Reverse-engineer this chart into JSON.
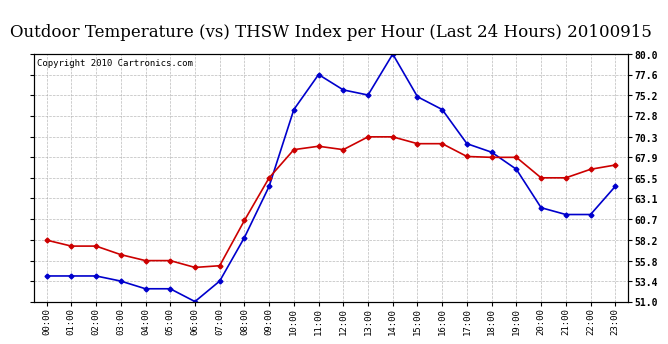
{
  "title": "Outdoor Temperature (vs) THSW Index per Hour (Last 24 Hours) 20100915",
  "copyright": "Copyright 2010 Cartronics.com",
  "hours": [
    "00:00",
    "01:00",
    "02:00",
    "03:00",
    "04:00",
    "05:00",
    "06:00",
    "07:00",
    "08:00",
    "09:00",
    "10:00",
    "11:00",
    "12:00",
    "13:00",
    "14:00",
    "15:00",
    "16:00",
    "17:00",
    "18:00",
    "19:00",
    "20:00",
    "21:00",
    "22:00",
    "23:00"
  ],
  "temp": [
    58.2,
    57.5,
    57.5,
    56.5,
    55.8,
    55.8,
    55.0,
    55.2,
    60.5,
    65.5,
    68.8,
    69.2,
    68.8,
    70.3,
    70.3,
    69.5,
    69.5,
    68.0,
    67.9,
    67.9,
    65.5,
    65.5,
    66.5,
    67.0
  ],
  "thsw": [
    54.0,
    54.0,
    54.0,
    53.4,
    52.5,
    52.5,
    51.0,
    53.4,
    58.5,
    64.5,
    73.5,
    77.6,
    75.8,
    75.2,
    80.0,
    75.0,
    73.5,
    69.5,
    68.5,
    66.5,
    62.0,
    61.2,
    61.2,
    64.5
  ],
  "temp_color": "#cc0000",
  "thsw_color": "#0000cc",
  "bg_color": "#ffffff",
  "grid_color": "#aaaaaa",
  "title_fontsize": 12,
  "copyright_fontsize": 6.5,
  "ylim_min": 51.0,
  "ylim_max": 80.0,
  "yticks": [
    51.0,
    53.4,
    55.8,
    58.2,
    60.7,
    63.1,
    65.5,
    67.9,
    70.3,
    72.8,
    75.2,
    77.6,
    80.0
  ]
}
